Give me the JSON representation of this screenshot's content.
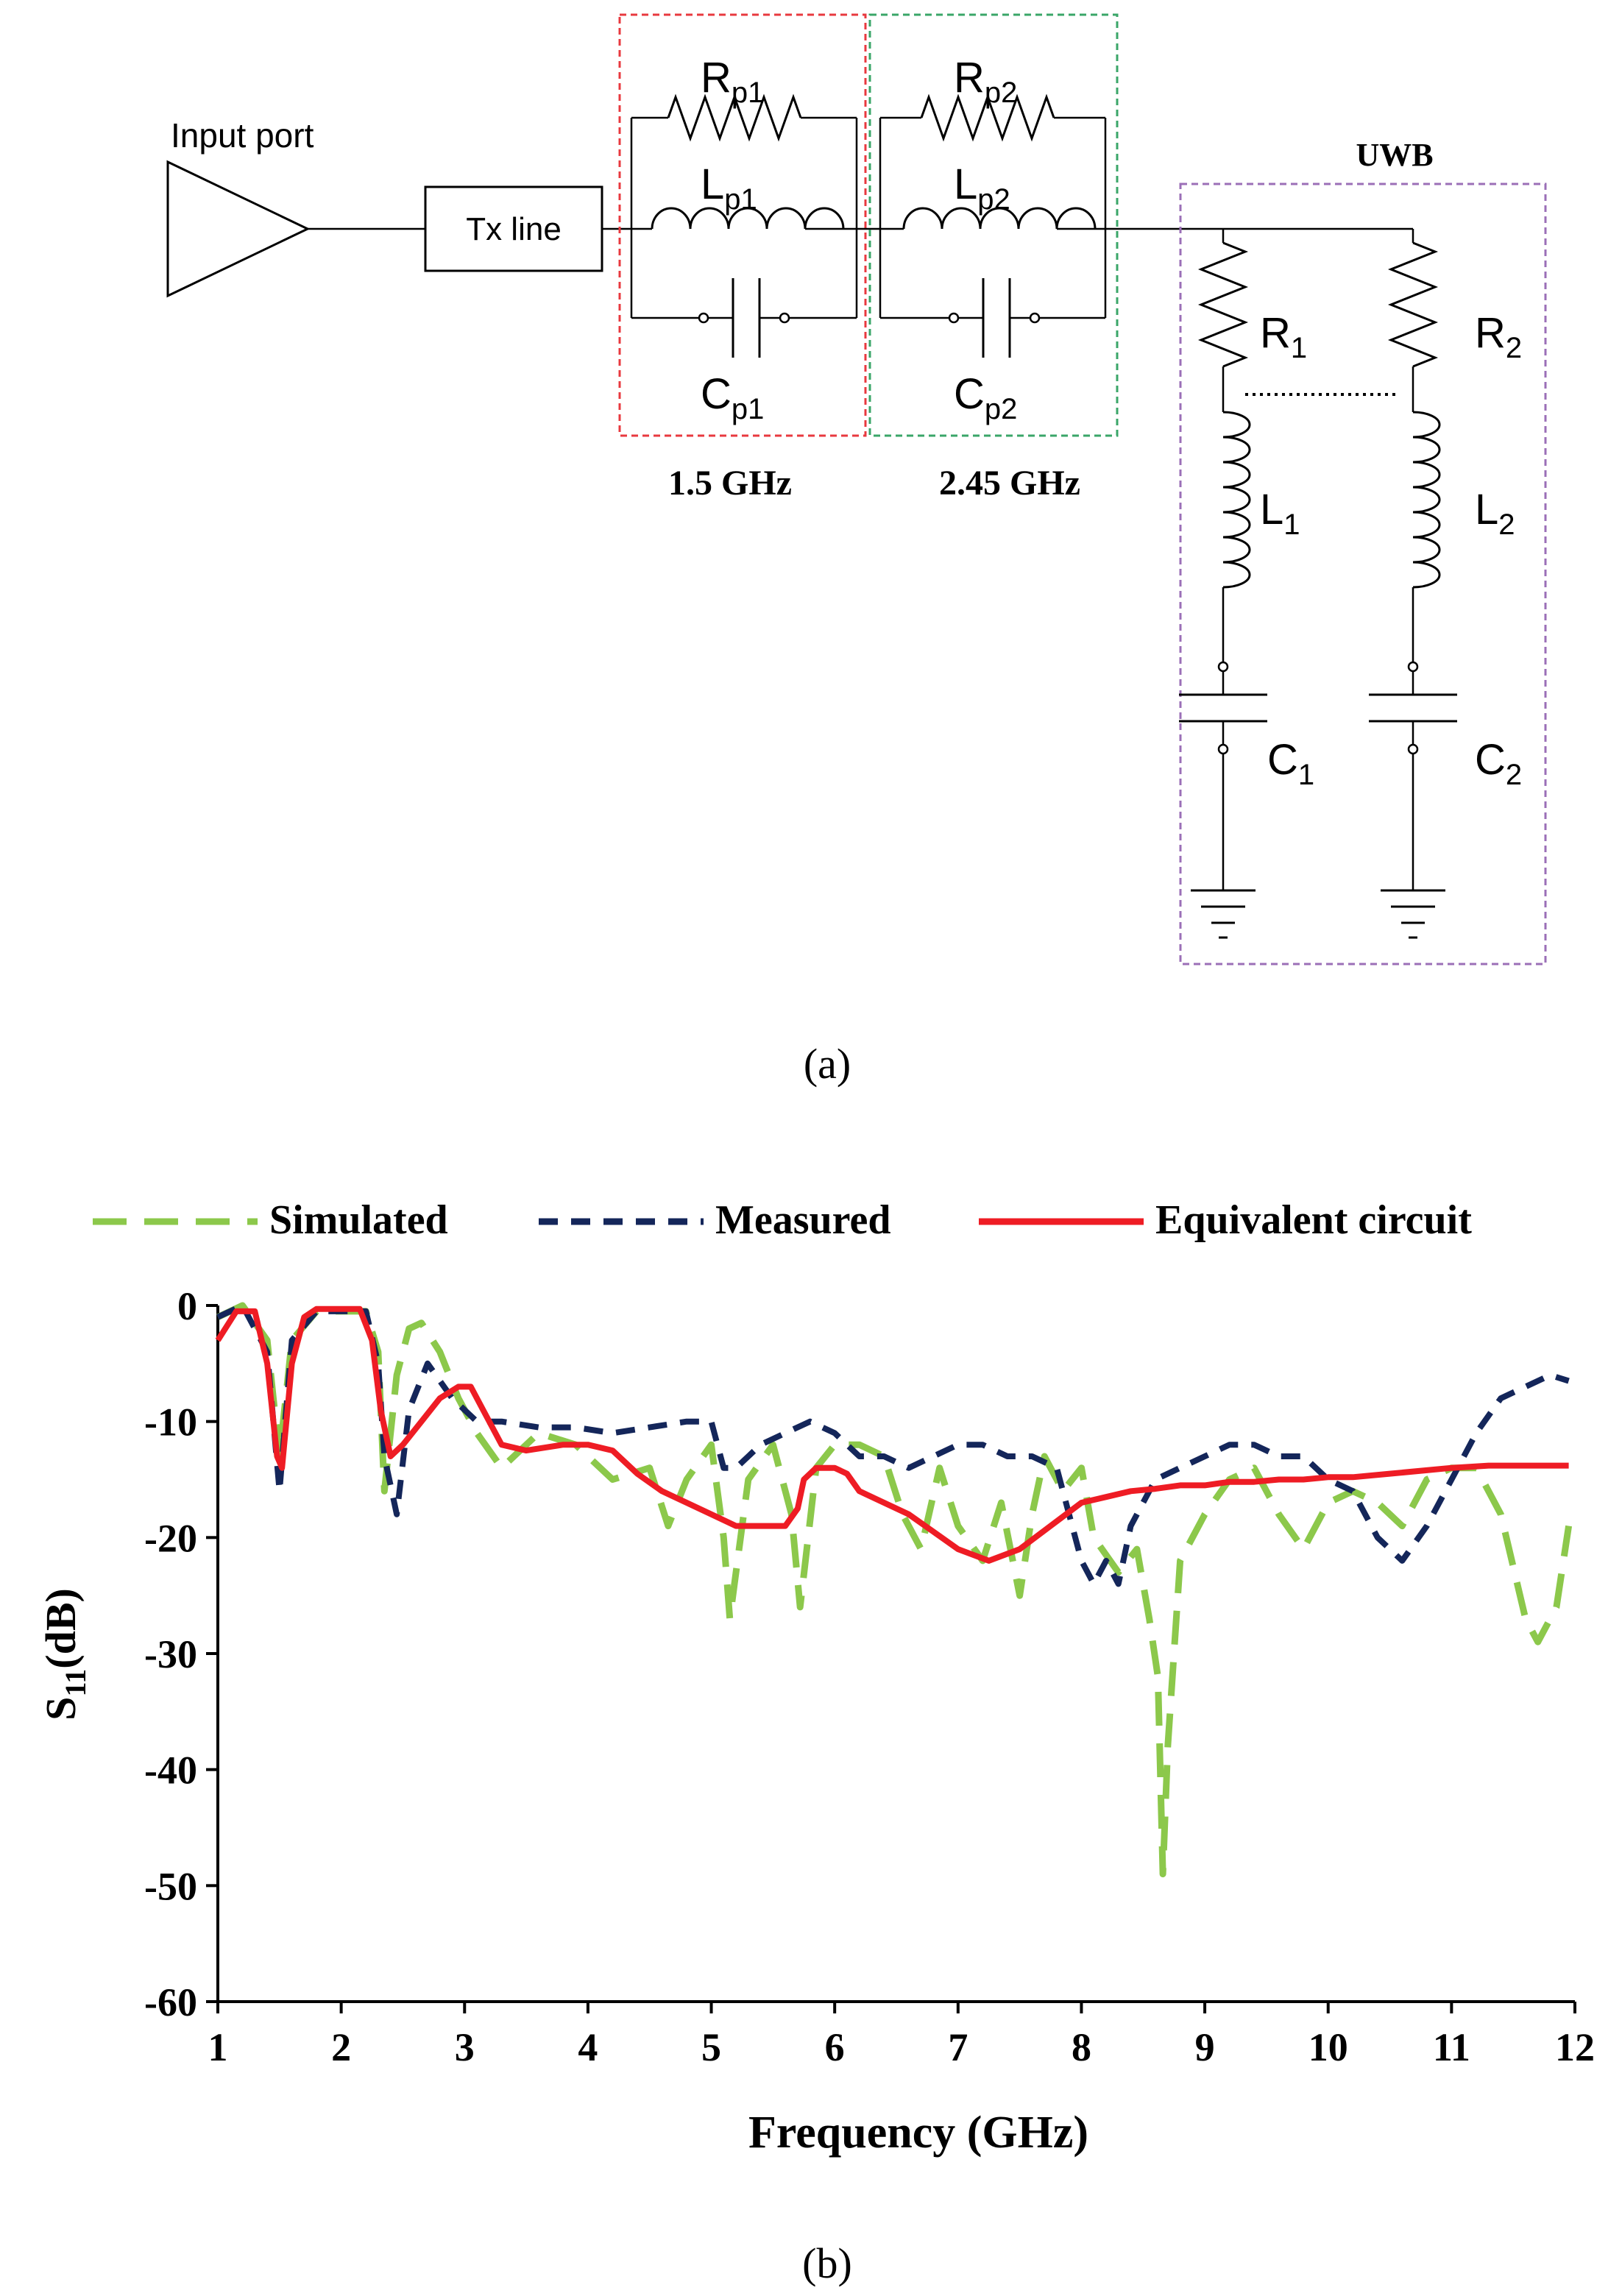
{
  "figure_a": {
    "caption": "(a)",
    "input_port": "Input port",
    "tx_line": "Tx line",
    "uwb": "UWB",
    "stage1": {
      "freq": "1.5 GHz",
      "r": "R",
      "r_sub": "p1",
      "l": "L",
      "l_sub": "p1",
      "c": "C",
      "c_sub": "p1",
      "box_color": "#e8393f"
    },
    "stage2": {
      "freq": "2.45 GHz",
      "r": "R",
      "r_sub": "p2",
      "l": "L",
      "l_sub": "p2",
      "c": "C",
      "c_sub": "p2",
      "box_color": "#3aa668"
    },
    "branch1": {
      "r": "R",
      "r_sub": "1",
      "l": "L",
      "l_sub": "1",
      "c": "C",
      "c_sub": "1"
    },
    "branch2": {
      "r": "R",
      "r_sub": "2",
      "l": "L",
      "l_sub": "2",
      "c": "C",
      "c_sub": "2"
    },
    "uwb_box_color": "#9b6fb7"
  },
  "figure_b": {
    "caption": "(b)",
    "legend": {
      "simulated": "Simulated",
      "measured": "Measured",
      "equivalent": "Equivalent circuit"
    }
  },
  "chart_data": {
    "type": "line",
    "xlabel": "Frequency (GHz)",
    "ylabel_main": "S",
    "ylabel_sub": "11",
    "ylabel_unit": "(dB)",
    "xlim": [
      1,
      12
    ],
    "ylim": [
      -60,
      0
    ],
    "xticks": [
      "1",
      "2",
      "3",
      "4",
      "5",
      "6",
      "7",
      "8",
      "9",
      "10",
      "11",
      "12"
    ],
    "yticks": [
      "0",
      "-10",
      "-20",
      "-30",
      "-40",
      "-50",
      "-60"
    ],
    "series": [
      {
        "name": "Simulated",
        "color": "#8cc84b",
        "dash": "dashed-long",
        "x": [
          1.0,
          1.2,
          1.4,
          1.5,
          1.6,
          1.8,
          2.0,
          2.2,
          2.3,
          2.35,
          2.45,
          2.55,
          2.65,
          2.8,
          2.95,
          3.1,
          3.3,
          3.6,
          3.9,
          4.2,
          4.5,
          4.65,
          4.8,
          5.0,
          5.1,
          5.15,
          5.3,
          5.5,
          5.65,
          5.72,
          5.85,
          6.0,
          6.2,
          6.4,
          6.55,
          6.7,
          6.85,
          7.0,
          7.2,
          7.35,
          7.5,
          7.6,
          7.7,
          7.85,
          8.0,
          8.1,
          8.3,
          8.45,
          8.55,
          8.62,
          8.66,
          8.7,
          8.8,
          9.0,
          9.2,
          9.4,
          9.6,
          9.8,
          10.0,
          10.2,
          10.4,
          10.6,
          10.8,
          11.0,
          11.2,
          11.4,
          11.6,
          11.7,
          11.85,
          11.95
        ],
        "y": [
          -1,
          0,
          -3,
          -13,
          -3,
          -0.5,
          -0.5,
          -0.5,
          -4,
          -16,
          -6,
          -2,
          -1.5,
          -4,
          -8,
          -11,
          -14,
          -11,
          -12,
          -15,
          -14,
          -19,
          -15,
          -12,
          -20,
          -27,
          -15,
          -12,
          -18,
          -26,
          -14,
          -12,
          -12,
          -13,
          -18,
          -21,
          -14,
          -19,
          -22,
          -17,
          -25,
          -18,
          -13,
          -16,
          -14,
          -20,
          -23,
          -21,
          -27,
          -32,
          -49,
          -38,
          -22,
          -18,
          -15,
          -14,
          -18,
          -21,
          -17,
          -16,
          -17,
          -19,
          -15,
          -14,
          -14,
          -18,
          -27,
          -29,
          -26,
          -19
        ]
      },
      {
        "name": "Measured",
        "color": "#14265a",
        "dash": "dashed-short",
        "x": [
          1.0,
          1.2,
          1.4,
          1.5,
          1.6,
          1.8,
          2.0,
          2.2,
          2.3,
          2.35,
          2.45,
          2.55,
          2.7,
          2.9,
          3.1,
          3.3,
          3.6,
          3.9,
          4.2,
          4.5,
          4.8,
          5.0,
          5.1,
          5.2,
          5.4,
          5.6,
          5.8,
          6.0,
          6.2,
          6.4,
          6.6,
          6.8,
          7.0,
          7.2,
          7.4,
          7.6,
          7.8,
          8.0,
          8.1,
          8.2,
          8.3,
          8.4,
          8.6,
          8.8,
          9.0,
          9.2,
          9.4,
          9.6,
          9.8,
          10.0,
          10.2,
          10.4,
          10.6,
          10.8,
          11.0,
          11.2,
          11.4,
          11.6,
          11.8,
          11.95
        ],
        "y": [
          -1,
          0,
          -4,
          -16,
          -3,
          -0.5,
          -0.5,
          -0.5,
          -5,
          -13,
          -18,
          -9,
          -5,
          -8,
          -10,
          -10,
          -10.5,
          -10.5,
          -11,
          -10.5,
          -10,
          -10,
          -14,
          -14,
          -12,
          -11,
          -10,
          -11,
          -13,
          -13,
          -14,
          -13,
          -12,
          -12,
          -13,
          -13,
          -14,
          -22,
          -24,
          -22,
          -24,
          -19,
          -15,
          -14,
          -13,
          -12,
          -12,
          -13,
          -13,
          -15,
          -16,
          -20,
          -22,
          -19,
          -15,
          -11,
          -8,
          -7,
          -6,
          -6.5
        ]
      },
      {
        "name": "Equivalent circuit",
        "color": "#ee1c24",
        "dash": "solid",
        "x": [
          1.0,
          1.15,
          1.3,
          1.4,
          1.48,
          1.52,
          1.6,
          1.7,
          1.8,
          2.0,
          2.15,
          2.25,
          2.32,
          2.4,
          2.5,
          2.65,
          2.8,
          2.95,
          3.05,
          3.15,
          3.3,
          3.5,
          3.8,
          4.0,
          4.2,
          4.4,
          4.6,
          4.8,
          5.0,
          5.2,
          5.4,
          5.6,
          5.7,
          5.75,
          5.85,
          6.0,
          6.1,
          6.2,
          6.4,
          6.6,
          6.8,
          7.0,
          7.25,
          7.5,
          7.75,
          8.0,
          8.2,
          8.4,
          8.6,
          8.8,
          9.0,
          9.2,
          9.4,
          9.6,
          9.8,
          10.0,
          10.2,
          10.5,
          10.8,
          11.0,
          11.3,
          11.6,
          11.95
        ],
        "y": [
          -3,
          -0.5,
          -0.5,
          -5,
          -13,
          -14,
          -5,
          -1,
          -0.3,
          -0.3,
          -0.3,
          -3,
          -9,
          -13,
          -12,
          -10,
          -8,
          -7,
          -7,
          -9,
          -12,
          -12.5,
          -12,
          -12,
          -12.5,
          -14.5,
          -16,
          -17,
          -18,
          -19,
          -19,
          -19,
          -17.5,
          -15,
          -14,
          -14,
          -14.5,
          -16,
          -17,
          -18,
          -19.5,
          -21,
          -22,
          -21,
          -19,
          -17,
          -16.5,
          -16,
          -15.8,
          -15.5,
          -15.5,
          -15.2,
          -15.2,
          -15,
          -15,
          -14.8,
          -14.8,
          -14.5,
          -14.2,
          -14,
          -13.8,
          -13.8,
          -13.8
        ]
      }
    ]
  }
}
